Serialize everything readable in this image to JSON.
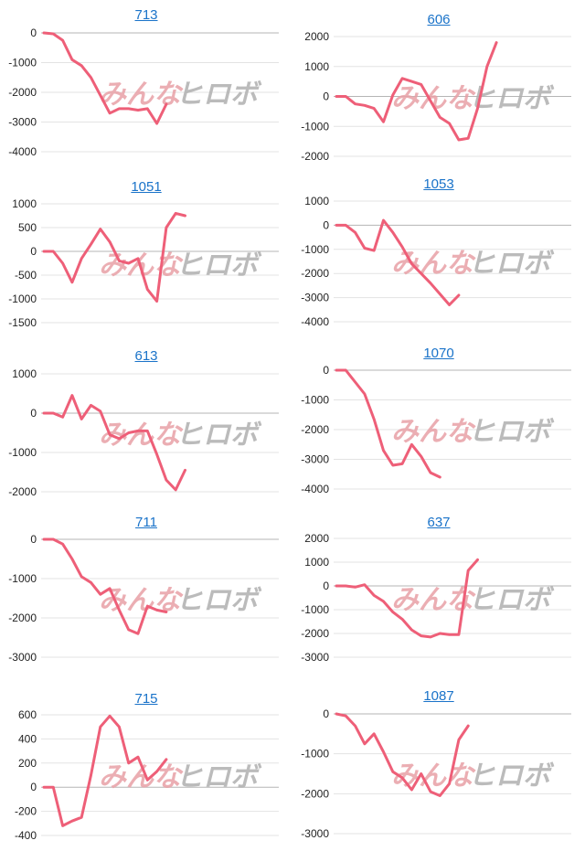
{
  "watermark": {
    "left_text": "みんな",
    "right_text": "ヒロボ",
    "left_color": "#e8a0a6",
    "right_color": "#b0b0b0"
  },
  "line_color": "#ee5f78",
  "chart_data": [
    {
      "type": "line",
      "title": "713",
      "yticks": [
        0,
        -1000,
        -2000,
        -3000,
        -4000
      ],
      "ylim": [
        -4000,
        0
      ],
      "values": [
        0,
        -30,
        -250,
        -900,
        -1100,
        -1500,
        -2100,
        -2700,
        -2550,
        -2550,
        -2600,
        -2550,
        -3050,
        -2400
      ]
    },
    {
      "type": "line",
      "title": "606",
      "yticks": [
        2000,
        1000,
        0,
        -1000,
        -2000
      ],
      "ylim": [
        -2000,
        2000
      ],
      "values": [
        0,
        0,
        -250,
        -300,
        -400,
        -850,
        50,
        600,
        500,
        400,
        -150,
        -700,
        -900,
        -1450,
        -1400,
        -400,
        1000,
        1800
      ]
    },
    {
      "type": "line",
      "title": "1051",
      "yticks": [
        1000,
        500,
        0,
        -500,
        -1000,
        -1500
      ],
      "ylim": [
        -1500,
        1000
      ],
      "values": [
        0,
        0,
        -250,
        -650,
        -150,
        150,
        470,
        200,
        -200,
        -250,
        -150,
        -800,
        -1050,
        500,
        800,
        750
      ]
    },
    {
      "type": "line",
      "title": "1053",
      "yticks": [
        1000,
        0,
        -1000,
        -2000,
        -3000,
        -4000
      ],
      "ylim": [
        -4000,
        1000
      ],
      "values": [
        0,
        0,
        -300,
        -950,
        -1050,
        200,
        -300,
        -900,
        -1600,
        -2000,
        -2400,
        -2850,
        -3300,
        -2900
      ]
    },
    {
      "type": "line",
      "title": "613",
      "yticks": [
        1000,
        0,
        -1000,
        -2000
      ],
      "ylim": [
        -2000,
        1000
      ],
      "values": [
        0,
        0,
        -100,
        450,
        -150,
        200,
        50,
        -550,
        -650,
        -500,
        -450,
        -450,
        -1050,
        -1700,
        -1950,
        -1450
      ]
    },
    {
      "type": "line",
      "title": "1070",
      "yticks": [
        0,
        -1000,
        -2000,
        -3000,
        -4000
      ],
      "ylim": [
        -4000,
        0
      ],
      "values": [
        0,
        0,
        -400,
        -800,
        -1650,
        -2700,
        -3200,
        -3150,
        -2500,
        -2900,
        -3450,
        -3600
      ]
    },
    {
      "type": "line",
      "title": "711",
      "yticks": [
        0,
        -1000,
        -2000,
        -3000
      ],
      "ylim": [
        -3000,
        0
      ],
      "values": [
        0,
        0,
        -120,
        -500,
        -950,
        -1100,
        -1400,
        -1250,
        -1800,
        -2300,
        -2400,
        -1700,
        -1800,
        -1850
      ]
    },
    {
      "type": "line",
      "title": "637",
      "yticks": [
        2000,
        1000,
        0,
        -1000,
        -2000,
        -3000
      ],
      "ylim": [
        -3000,
        2000
      ],
      "values": [
        0,
        0,
        -50,
        50,
        -400,
        -650,
        -1100,
        -1400,
        -1850,
        -2100,
        -2150,
        -2000,
        -2050,
        -2050,
        650,
        1100
      ]
    },
    {
      "type": "line",
      "title": "715",
      "yticks": [
        600,
        400,
        200,
        0,
        -200,
        -400
      ],
      "ylim": [
        -400,
        600
      ],
      "values": [
        0,
        0,
        -320,
        -280,
        -250,
        100,
        500,
        590,
        500,
        200,
        250,
        60,
        130,
        230
      ]
    },
    {
      "type": "line",
      "title": "1087",
      "yticks": [
        0,
        -1000,
        -2000,
        -3000
      ],
      "ylim": [
        -3000,
        0
      ],
      "values": [
        0,
        -50,
        -300,
        -750,
        -500,
        -950,
        -1450,
        -1600,
        -1900,
        -1500,
        -1950,
        -2050,
        -1750,
        -650,
        -300
      ]
    }
  ]
}
